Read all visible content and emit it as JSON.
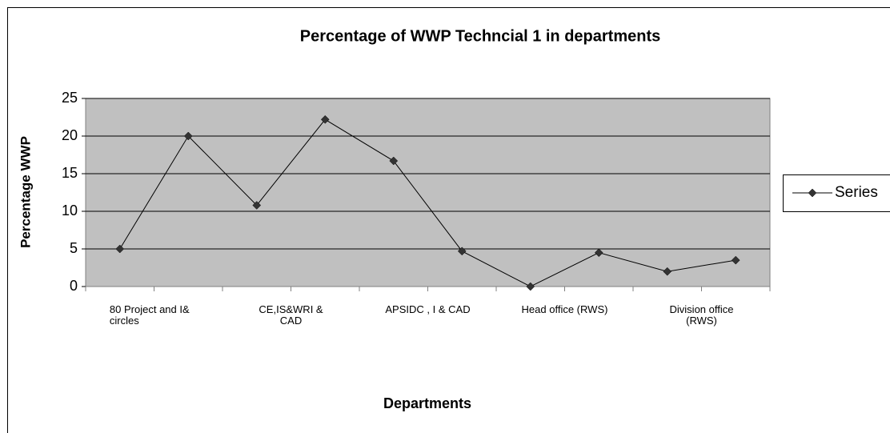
{
  "chart_data": {
    "type": "line",
    "title": "Percentage of WWP Techncial 1 in departments",
    "xlabel": "Departments",
    "ylabel": "Percentage WWP",
    "categories": [
      "80 Project and I& circles",
      null,
      "CE,IS&WRI & CAD",
      null,
      "APSIDC , I & CAD",
      null,
      "Head office (RWS)",
      null,
      "Division office (RWS)",
      null
    ],
    "series": [
      {
        "name": "Series",
        "color": "#333333",
        "values": [
          5,
          20,
          10.8,
          22.2,
          16.7,
          4.7,
          0,
          4.5,
          2,
          3.5
        ]
      }
    ],
    "ylim": [
      0,
      25
    ],
    "yticks": [
      0,
      5,
      10,
      15,
      20,
      25
    ],
    "grid": true
  }
}
